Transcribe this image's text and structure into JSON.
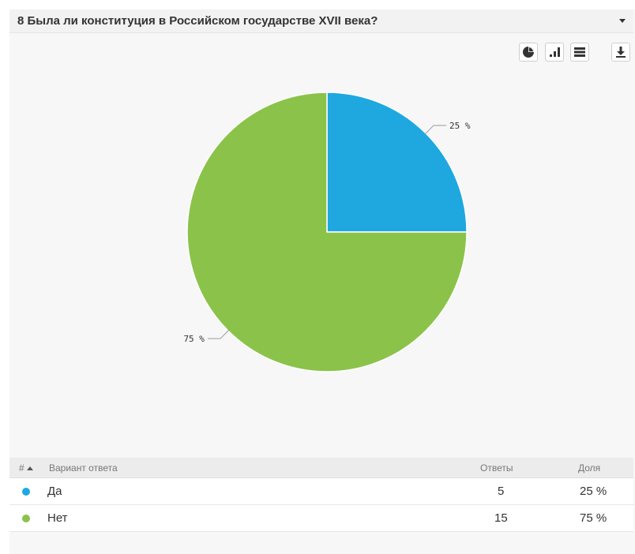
{
  "question": {
    "title": "8 Была ли конституция в Российском государстве XVII века?"
  },
  "toolbar": {
    "icons": [
      "pie-chart-icon",
      "bar-chart-icon",
      "list-view-icon",
      "download-icon"
    ]
  },
  "colors": {
    "yes": "#1ea8df",
    "no": "#8bc34a"
  },
  "chart_data": {
    "type": "pie",
    "categories": [
      "Да",
      "Нет"
    ],
    "values": [
      25,
      75
    ],
    "labels": [
      "25 %",
      "75 %"
    ]
  },
  "table": {
    "headers": {
      "num": "#",
      "option": "Вариант ответа",
      "answers": "Ответы",
      "share": "Доля"
    },
    "rows": [
      {
        "option": "Да",
        "answers": "5",
        "share": "25 %"
      },
      {
        "option": "Нет",
        "answers": "15",
        "share": "75 %"
      }
    ]
  }
}
